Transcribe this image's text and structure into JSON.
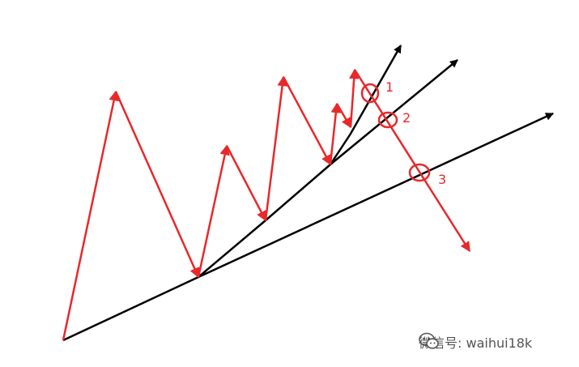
{
  "colors": {
    "red": "#e8282b",
    "black": "#000000",
    "watermark": "#555555"
  },
  "labels": [
    "1",
    "2",
    "3"
  ],
  "watermark": {
    "icon": "wechat-icon",
    "text": "微信号: waihui18k"
  }
}
